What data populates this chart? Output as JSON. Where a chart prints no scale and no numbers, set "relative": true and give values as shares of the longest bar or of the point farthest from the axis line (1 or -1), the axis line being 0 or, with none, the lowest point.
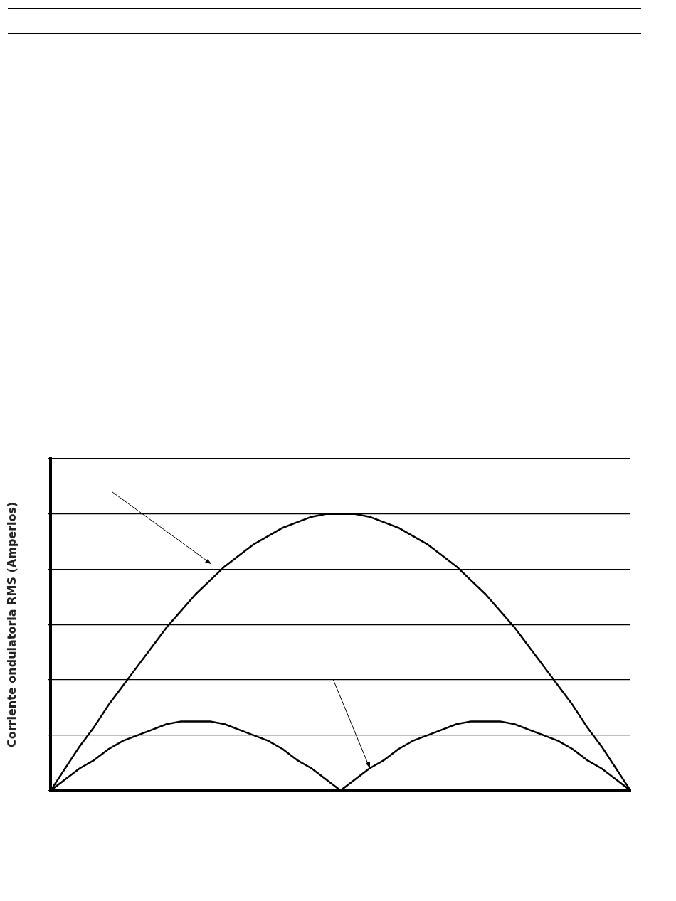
{
  "chart_data": {
    "type": "line",
    "ylabel": "Corriente ondulatoria RMS (Amperios)",
    "relative": true,
    "grid": "y",
    "legend": false,
    "marker": "none",
    "line_style": "solid",
    "categories": [
      null,
      null,
      null,
      null,
      null,
      null,
      null,
      null,
      null,
      null,
      null,
      null,
      null,
      null,
      null,
      null,
      null,
      null,
      null,
      null,
      null,
      null,
      null,
      null,
      null,
      null,
      null,
      null,
      null,
      null,
      null,
      null,
      null,
      null,
      null,
      null,
      null,
      null,
      null,
      null,
      null
    ],
    "series": [
      {
        "color": "#000000",
        "values": [
          0,
          0.08,
          0.16,
          0.23,
          0.31,
          0.38,
          0.45,
          0.52,
          0.59,
          0.65,
          0.71,
          0.76,
          0.81,
          0.85,
          0.89,
          0.92,
          0.95,
          0.97,
          0.99,
          1,
          1,
          1,
          0.99,
          0.97,
          0.95,
          0.92,
          0.89,
          0.85,
          0.81,
          0.76,
          0.71,
          0.65,
          0.59,
          0.52,
          0.45,
          0.38,
          0.31,
          0.23,
          0.16,
          0.08,
          0
        ]
      },
      {
        "color": "#000000",
        "values": [
          0,
          0.04,
          0.08,
          0.11,
          0.15,
          0.18,
          0.2,
          0.22,
          0.24,
          0.25,
          0.25,
          0.25,
          0.24,
          0.22,
          0.2,
          0.18,
          0.15,
          0.11,
          0.08,
          0.04,
          0,
          0.04,
          0.08,
          0.11,
          0.15,
          0.18,
          0.2,
          0.22,
          0.24,
          0.25,
          0.25,
          0.25,
          0.24,
          0.22,
          0.2,
          0.18,
          0.15,
          0.11,
          0.08,
          0.04,
          0
        ]
      }
    ]
  }
}
